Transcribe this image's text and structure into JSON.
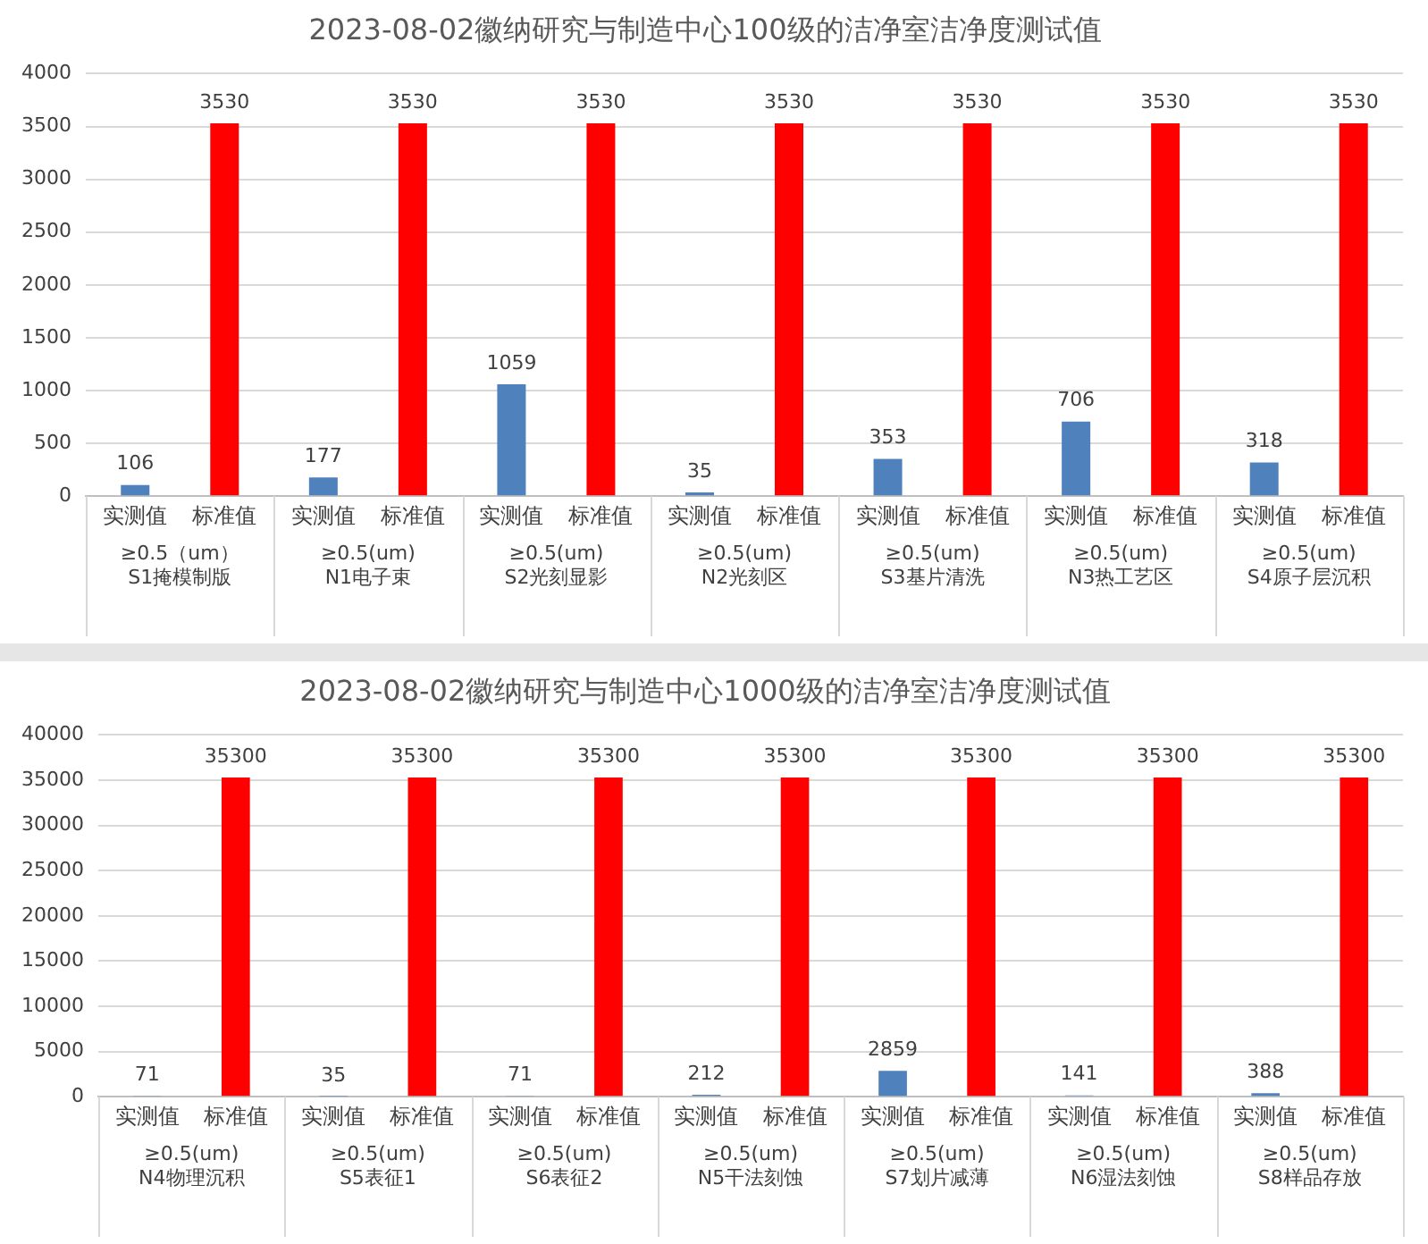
{
  "chart_data": [
    {
      "type": "bar",
      "title": "2023-08-02徽纳研究与制造中心100级的洁净室洁净度测试值",
      "categories": [
        "≥0.5（um）\nS1掩模制版",
        "≥0.5(um)\nN1电子束",
        "≥0.5(um)\nS2光刻显影",
        "≥0.5(um)\nN2光刻区",
        "≥0.5(um)\nS3基片清洗",
        "≥0.5(um)\nN3热工艺区",
        "≥0.5(um)\nS4原子层沉积"
      ],
      "series": [
        {
          "name": "实测值",
          "color": "#4f81bd",
          "values": [
            106,
            177,
            1059,
            35,
            353,
            706,
            318
          ]
        },
        {
          "name": "标准值",
          "color": "#ff0000",
          "values": [
            3530,
            3530,
            3530,
            3530,
            3530,
            3530,
            3530
          ]
        }
      ],
      "ylim": [
        0,
        4000
      ],
      "yticks": [
        0,
        500,
        1000,
        1500,
        2000,
        2500,
        3000,
        3500,
        4000
      ],
      "grid": "y",
      "legend": false,
      "data_labels": true
    },
    {
      "type": "bar",
      "title": "2023-08-02徽纳研究与制造中心1000级的洁净室洁净度测试值",
      "categories": [
        "≥0.5(um)\nN4物理沉积",
        "≥0.5(um)\nS5表征1",
        "≥0.5(um)\nS6表征2",
        "≥0.5(um)\nN5干法刻蚀",
        "≥0.5(um)\nS7划片减薄",
        "≥0.5(um)\nN6湿法刻蚀",
        "≥0.5(um)\nS8样品存放"
      ],
      "series": [
        {
          "name": "实测值",
          "color": "#4f81bd",
          "values": [
            71,
            35,
            71,
            212,
            2859,
            141,
            388
          ]
        },
        {
          "name": "标准值",
          "color": "#ff0000",
          "values": [
            35300,
            35300,
            35300,
            35300,
            35300,
            35300,
            35300
          ]
        }
      ],
      "ylim": [
        0,
        40000
      ],
      "yticks": [
        0,
        5000,
        10000,
        15000,
        20000,
        25000,
        30000,
        35000,
        40000
      ],
      "grid": "y",
      "legend": false,
      "data_labels": true
    }
  ]
}
